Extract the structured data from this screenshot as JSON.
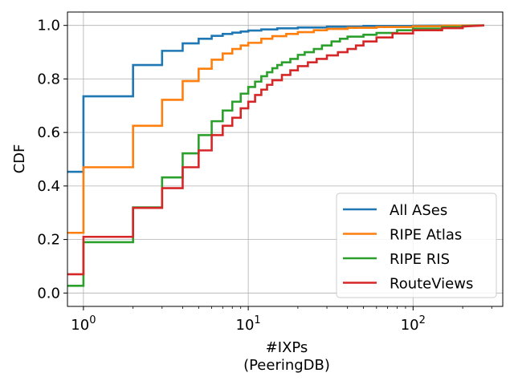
{
  "chart_data": {
    "type": "line",
    "step": true,
    "xscale": "log",
    "xlabel": "#IXPs",
    "xlabel_sub": "(PeeringDB)",
    "ylabel": "CDF",
    "xlim": [
      0.8,
      350
    ],
    "ylim": [
      -0.05,
      1.05
    ],
    "x_ticks": [
      {
        "value": 1,
        "base": "10",
        "exp": "0"
      },
      {
        "value": 10,
        "base": "10",
        "exp": "1"
      },
      {
        "value": 100,
        "base": "10",
        "exp": "2"
      }
    ],
    "y_ticks": [
      {
        "value": 0.0,
        "label": "0.0"
      },
      {
        "value": 0.2,
        "label": "0.2"
      },
      {
        "value": 0.4,
        "label": "0.4"
      },
      {
        "value": 0.6,
        "label": "0.6"
      },
      {
        "value": 0.8,
        "label": "0.8"
      },
      {
        "value": 1.0,
        "label": "1.0"
      }
    ],
    "grid": true,
    "legend_position": "lower-right",
    "series": [
      {
        "name": "All ASes",
        "color": "#1f77b4",
        "points": [
          [
            0.8,
            0.453
          ],
          [
            1,
            0.453
          ],
          [
            1,
            0.735
          ],
          [
            2,
            0.735
          ],
          [
            2,
            0.852
          ],
          [
            3,
            0.852
          ],
          [
            3,
            0.905
          ],
          [
            4,
            0.905
          ],
          [
            4,
            0.933
          ],
          [
            5,
            0.933
          ],
          [
            5,
            0.95
          ],
          [
            6,
            0.95
          ],
          [
            6,
            0.961
          ],
          [
            7,
            0.961
          ],
          [
            7,
            0.968
          ],
          [
            8,
            0.968
          ],
          [
            8,
            0.973
          ],
          [
            9,
            0.973
          ],
          [
            9,
            0.977
          ],
          [
            10,
            0.977
          ],
          [
            10,
            0.981
          ],
          [
            12,
            0.981
          ],
          [
            12,
            0.985
          ],
          [
            15,
            0.985
          ],
          [
            15,
            0.989
          ],
          [
            20,
            0.989
          ],
          [
            20,
            0.992
          ],
          [
            30,
            0.992
          ],
          [
            30,
            0.995
          ],
          [
            50,
            0.995
          ],
          [
            50,
            0.998
          ],
          [
            100,
            0.998
          ],
          [
            100,
            0.999
          ],
          [
            270,
            1.0
          ]
        ]
      },
      {
        "name": "RIPE Atlas",
        "color": "#ff7f0e",
        "points": [
          [
            0.8,
            0.225
          ],
          [
            1,
            0.225
          ],
          [
            1,
            0.47
          ],
          [
            2,
            0.47
          ],
          [
            2,
            0.625
          ],
          [
            3,
            0.625
          ],
          [
            3,
            0.722
          ],
          [
            4,
            0.722
          ],
          [
            4,
            0.792
          ],
          [
            5,
            0.792
          ],
          [
            5,
            0.838
          ],
          [
            6,
            0.838
          ],
          [
            6,
            0.872
          ],
          [
            7,
            0.872
          ],
          [
            7,
            0.895
          ],
          [
            8,
            0.895
          ],
          [
            8,
            0.912
          ],
          [
            9,
            0.912
          ],
          [
            9,
            0.925
          ],
          [
            10,
            0.925
          ],
          [
            10,
            0.935
          ],
          [
            12,
            0.935
          ],
          [
            12,
            0.95
          ],
          [
            14,
            0.95
          ],
          [
            14,
            0.96
          ],
          [
            17,
            0.96
          ],
          [
            17,
            0.968
          ],
          [
            20,
            0.968
          ],
          [
            20,
            0.975
          ],
          [
            25,
            0.975
          ],
          [
            25,
            0.982
          ],
          [
            30,
            0.982
          ],
          [
            30,
            0.987
          ],
          [
            40,
            0.987
          ],
          [
            40,
            0.991
          ],
          [
            60,
            0.991
          ],
          [
            60,
            0.994
          ],
          [
            100,
            0.994
          ],
          [
            100,
            0.997
          ],
          [
            150,
            0.997
          ],
          [
            150,
            0.999
          ],
          [
            270,
            1.0
          ]
        ]
      },
      {
        "name": "RIPE RIS",
        "color": "#2ca02c",
        "points": [
          [
            0.8,
            0.027
          ],
          [
            1,
            0.027
          ],
          [
            1,
            0.19
          ],
          [
            2,
            0.19
          ],
          [
            2,
            0.32
          ],
          [
            3,
            0.32
          ],
          [
            3,
            0.432
          ],
          [
            4,
            0.432
          ],
          [
            4,
            0.522
          ],
          [
            5,
            0.522
          ],
          [
            5,
            0.59
          ],
          [
            6,
            0.59
          ],
          [
            6,
            0.642
          ],
          [
            7,
            0.642
          ],
          [
            7,
            0.682
          ],
          [
            8,
            0.682
          ],
          [
            8,
            0.715
          ],
          [
            9,
            0.715
          ],
          [
            9,
            0.745
          ],
          [
            10,
            0.745
          ],
          [
            10,
            0.77
          ],
          [
            11,
            0.77
          ],
          [
            11,
            0.79
          ],
          [
            12,
            0.79
          ],
          [
            12,
            0.81
          ],
          [
            13,
            0.81
          ],
          [
            13,
            0.825
          ],
          [
            14,
            0.825
          ],
          [
            14,
            0.84
          ],
          [
            15,
            0.84
          ],
          [
            15,
            0.852
          ],
          [
            16,
            0.852
          ],
          [
            16,
            0.862
          ],
          [
            18,
            0.862
          ],
          [
            18,
            0.875
          ],
          [
            20,
            0.875
          ],
          [
            20,
            0.89
          ],
          [
            22,
            0.89
          ],
          [
            22,
            0.9
          ],
          [
            25,
            0.9
          ],
          [
            25,
            0.912
          ],
          [
            28,
            0.912
          ],
          [
            28,
            0.925
          ],
          [
            32,
            0.925
          ],
          [
            32,
            0.94
          ],
          [
            36,
            0.94
          ],
          [
            36,
            0.95
          ],
          [
            40,
            0.95
          ],
          [
            40,
            0.958
          ],
          [
            50,
            0.958
          ],
          [
            50,
            0.965
          ],
          [
            60,
            0.965
          ],
          [
            60,
            0.972
          ],
          [
            80,
            0.972
          ],
          [
            80,
            0.982
          ],
          [
            100,
            0.982
          ],
          [
            100,
            0.988
          ],
          [
            150,
            0.988
          ],
          [
            150,
            0.994
          ],
          [
            200,
            0.994
          ],
          [
            200,
            0.998
          ],
          [
            270,
            1.0
          ]
        ]
      },
      {
        "name": "RouteViews",
        "color": "#d62728",
        "points": [
          [
            0.8,
            0.07
          ],
          [
            1,
            0.07
          ],
          [
            1,
            0.21
          ],
          [
            2,
            0.21
          ],
          [
            2,
            0.318
          ],
          [
            3,
            0.318
          ],
          [
            3,
            0.392
          ],
          [
            4,
            0.392
          ],
          [
            4,
            0.47
          ],
          [
            5,
            0.47
          ],
          [
            5,
            0.533
          ],
          [
            6,
            0.533
          ],
          [
            6,
            0.59
          ],
          [
            7,
            0.59
          ],
          [
            7,
            0.625
          ],
          [
            8,
            0.625
          ],
          [
            8,
            0.655
          ],
          [
            9,
            0.655
          ],
          [
            9,
            0.69
          ],
          [
            10,
            0.69
          ],
          [
            10,
            0.715
          ],
          [
            11,
            0.715
          ],
          [
            11,
            0.74
          ],
          [
            12,
            0.74
          ],
          [
            12,
            0.76
          ],
          [
            13,
            0.76
          ],
          [
            13,
            0.778
          ],
          [
            14,
            0.778
          ],
          [
            14,
            0.795
          ],
          [
            16,
            0.795
          ],
          [
            16,
            0.815
          ],
          [
            18,
            0.815
          ],
          [
            18,
            0.832
          ],
          [
            20,
            0.832
          ],
          [
            20,
            0.848
          ],
          [
            23,
            0.848
          ],
          [
            23,
            0.862
          ],
          [
            26,
            0.862
          ],
          [
            26,
            0.875
          ],
          [
            30,
            0.875
          ],
          [
            30,
            0.888
          ],
          [
            35,
            0.888
          ],
          [
            35,
            0.9
          ],
          [
            40,
            0.9
          ],
          [
            40,
            0.912
          ],
          [
            45,
            0.912
          ],
          [
            45,
            0.925
          ],
          [
            50,
            0.925
          ],
          [
            50,
            0.94
          ],
          [
            60,
            0.94
          ],
          [
            60,
            0.955
          ],
          [
            75,
            0.955
          ],
          [
            75,
            0.97
          ],
          [
            100,
            0.97
          ],
          [
            100,
            0.982
          ],
          [
            150,
            0.982
          ],
          [
            150,
            0.99
          ],
          [
            200,
            0.99
          ],
          [
            200,
            0.996
          ],
          [
            270,
            1.0
          ]
        ]
      }
    ]
  }
}
